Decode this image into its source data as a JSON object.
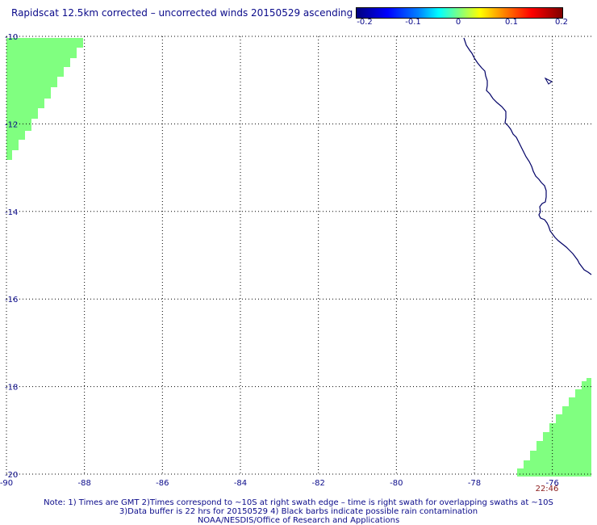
{
  "title": "Rapidscat 12.5km corrected – uncorrected winds 20150529 ascending",
  "colorbar": {
    "labels": [
      "-0.2",
      "-0.1",
      "0",
      "0.1",
      "0.2"
    ],
    "values": [
      -0.2,
      -0.1,
      0,
      0.1,
      0.2
    ]
  },
  "map": {
    "lon_range": [
      -90,
      -75
    ],
    "lat_range": [
      -20,
      -10
    ],
    "lon_ticks": [
      "-90",
      "-88",
      "-86",
      "-84",
      "-82",
      "-80",
      "-78",
      "-76"
    ],
    "lat_ticks": [
      "-10",
      "-12",
      "-14",
      "-16",
      "-18",
      "-20"
    ],
    "swath_color": "#80ff80",
    "coast_color": "#000066",
    "grid": true,
    "time_label": "22:46"
  },
  "notes": {
    "line1": "Note: 1) Times are GMT 2)Times correspond to ~10S at right swath edge – time is right swath for overlapping swaths at ~10S",
    "line2": "3)Data buffer is 22 hrs for 20150529 4) Black barbs indicate possible rain contamination",
    "line3": "NOAA/NESDIS/Office of Research and Applications"
  }
}
